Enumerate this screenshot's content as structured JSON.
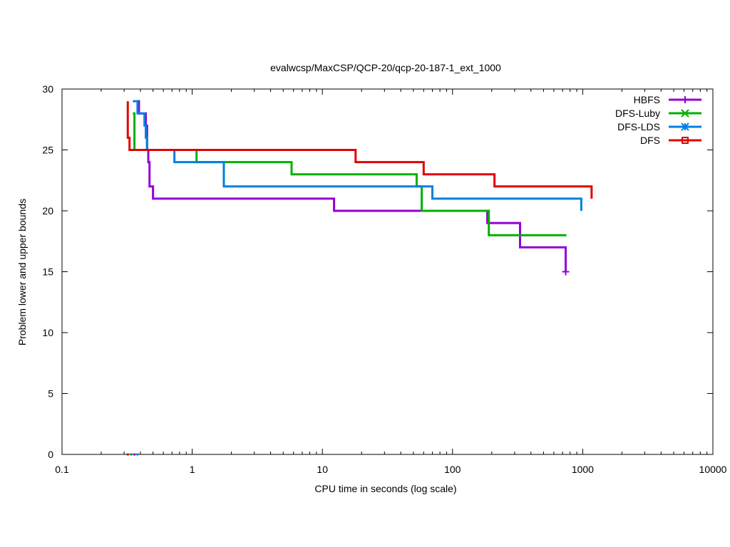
{
  "chart_data": {
    "type": "line",
    "title": "evalwcsp/MaxCSP/QCP-20/qcp-20-187-1_ext_1000",
    "xlabel": "CPU time in seconds (log scale)",
    "ylabel": "Problem lower and upper bounds",
    "xscale": "log",
    "xlim": [
      0.1,
      10000
    ],
    "ylim": [
      0,
      30
    ],
    "xticks": [
      0.1,
      1,
      10,
      100,
      1000,
      10000
    ],
    "xtick_labels": [
      "0.1",
      "1",
      "10",
      "100",
      "1000",
      "10000"
    ],
    "yticks": [
      0,
      5,
      10,
      15,
      20,
      25,
      30
    ],
    "ytick_labels": [
      "0",
      "5",
      "10",
      "15",
      "20",
      "25",
      "30"
    ],
    "grid": false,
    "legend_position": "top-right",
    "series": [
      {
        "name": "HBFS",
        "color": "#9400d3",
        "marker": "plus",
        "step": true,
        "points": [
          [
            0.38,
            29
          ],
          [
            0.39,
            28
          ],
          [
            0.44,
            27
          ],
          [
            0.45,
            26
          ],
          [
            0.45,
            25
          ],
          [
            0.46,
            24
          ],
          [
            0.47,
            22
          ],
          [
            0.5,
            21
          ],
          [
            12.3,
            20
          ],
          [
            185,
            19
          ],
          [
            330,
            17
          ],
          [
            740,
            15
          ]
        ],
        "end_marker": [
          740,
          15
        ],
        "lower_bound": [
          [
            0.36,
            0
          ]
        ]
      },
      {
        "name": "DFS-Luby",
        "color": "#00b000",
        "marker": "x",
        "step": true,
        "points": [
          [
            0.35,
            28
          ],
          [
            0.36,
            26
          ],
          [
            0.36,
            25
          ],
          [
            1.08,
            24
          ],
          [
            5.8,
            23
          ],
          [
            53,
            22
          ],
          [
            58,
            20
          ],
          [
            190,
            18
          ],
          [
            750,
            18
          ]
        ],
        "lower_bound": [
          [
            0.34,
            0
          ]
        ]
      },
      {
        "name": "DFS-LDS",
        "color": "#0080e0",
        "marker": "star",
        "step": true,
        "points": [
          [
            0.35,
            29
          ],
          [
            0.38,
            28
          ],
          [
            0.42,
            28
          ],
          [
            0.43,
            27
          ],
          [
            0.44,
            26
          ],
          [
            0.45,
            25
          ],
          [
            0.73,
            24
          ],
          [
            1.75,
            22
          ],
          [
            70,
            21
          ],
          [
            975,
            20
          ]
        ],
        "lower_bound": [
          [
            0.38,
            0
          ]
        ]
      },
      {
        "name": "DFS",
        "color": "#e00000",
        "marker": "square",
        "step": true,
        "points": [
          [
            0.32,
            29
          ],
          [
            0.32,
            26
          ],
          [
            0.33,
            25
          ],
          [
            18,
            24
          ],
          [
            60,
            23
          ],
          [
            210,
            22
          ],
          [
            1170,
            21
          ]
        ],
        "lower_bound": [
          [
            0.32,
            0
          ]
        ]
      }
    ]
  }
}
